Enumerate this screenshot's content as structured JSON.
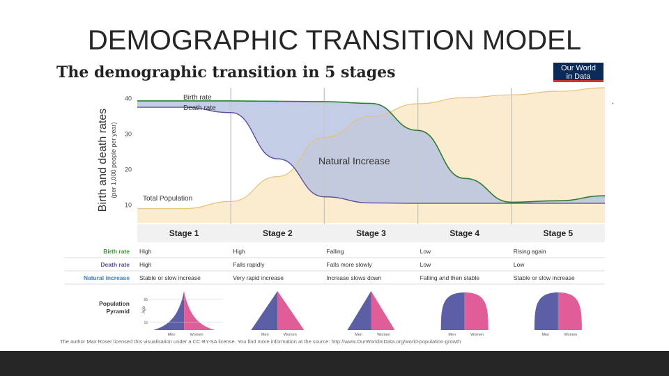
{
  "slide": {
    "title": "DEMOGRAPHIC TRANSITION MODEL",
    "logo_line1": "Our World",
    "logo_line2": "in Data",
    "stray_mark": "."
  },
  "chart_data": {
    "type": "area",
    "title": "The demographic transition in 5 stages",
    "ylabel": "Birth and death rates",
    "ylabel_sub": "(per 1,000 people per year)",
    "ylim": [
      5,
      43
    ],
    "yticks": [
      10,
      20,
      30,
      40
    ],
    "x": [
      0,
      0.5,
      1,
      1.5,
      2,
      2.5,
      3,
      3.5,
      4,
      4.5,
      5
    ],
    "series": [
      {
        "name": "Birth rate",
        "color": "#2e7d32",
        "values": [
          39.3,
          39.3,
          39.3,
          39.2,
          39.1,
          38.6,
          31,
          17.5,
          10.8,
          11.2,
          12.6
        ]
      },
      {
        "name": "Death rate",
        "color": "#5c4b9e",
        "values": [
          37.5,
          37.5,
          36,
          23,
          12.3,
          10.6,
          10.5,
          10.5,
          10.5,
          10.5,
          10.5
        ]
      },
      {
        "name": "Total Population",
        "color": "#e8c07a",
        "values": [
          9,
          9,
          11,
          18,
          29,
          35,
          38.5,
          40.2,
          41,
          42,
          43
        ]
      }
    ],
    "area_label": "Natural Increase",
    "gridlines": false,
    "stage_dividers": true,
    "stages": [
      "Stage 1",
      "Stage 2",
      "Stage 3",
      "Stage 4",
      "Stage 5"
    ],
    "table": {
      "row_labels": {
        "birth": "Birth rate",
        "death": "Death rate",
        "natural": "Natural increase",
        "pyramid_line1": "Population",
        "pyramid_line2": "Pyramid"
      },
      "birth": [
        "High",
        "High",
        "Falling",
        "Low",
        "Rising again"
      ],
      "death": [
        "High",
        "Falls rapidly",
        "Falls more slowly",
        "Low",
        "Low"
      ],
      "natural": [
        "Stable or slow increase",
        "Very rapid increase",
        "Increase slows down",
        "Falling and then stable",
        "Stable or slow increase"
      ]
    },
    "pyramid": {
      "men_label": "Men",
      "women_label": "Women",
      "age_label": "Age",
      "tick_hi": "65",
      "tick_lo": "15",
      "men_color": "#5b5fa6",
      "women_color": "#e15d97"
    },
    "source": "The author Max Roser licensed this visualisation under a CC-BY-SA license. You find more information at the source: http://www.OurWorldInData.org/world-population-growth"
  }
}
